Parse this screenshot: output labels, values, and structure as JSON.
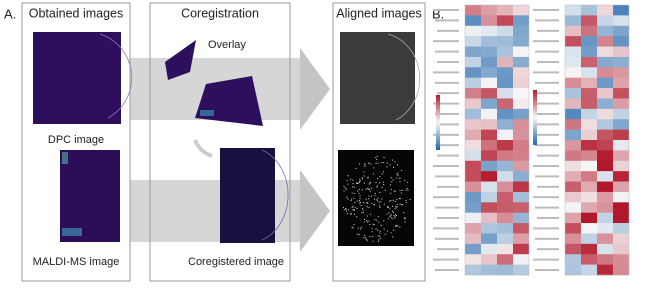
{
  "panel_a": {
    "label": "A.",
    "obtained": {
      "title": "Obtained images",
      "dpc_caption": "DPC image",
      "maldi_caption": "MALDI-MS image"
    },
    "coregistration": {
      "title": "Coregistration",
      "overlay_caption": "Overlay",
      "result_caption": "Coregistered image"
    },
    "aligned": {
      "title": "Aligned images"
    }
  },
  "panel_b": {
    "label": "B."
  }
}
